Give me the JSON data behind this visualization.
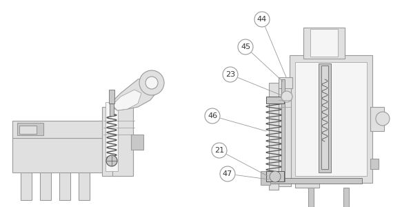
{
  "bg_color": "#ffffff",
  "line_color": "#999999",
  "line_color_dark": "#555555",
  "fill_light": "#e0e0e0",
  "fill_medium": "#c8c8c8",
  "fill_dark": "#aaaaaa",
  "fill_white": "#f5f5f5",
  "label_color": "#333333",
  "label_font_size": 8.0,
  "figsize": [
    5.83,
    3.0
  ],
  "dpi": 100
}
